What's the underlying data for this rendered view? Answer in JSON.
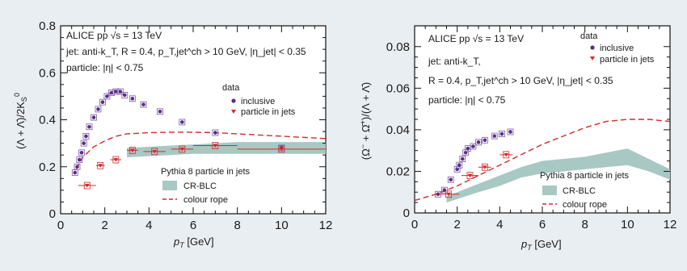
{
  "colors": {
    "background": "#e9eef2",
    "inclusive": "#5a2e84",
    "in_jets": "#d42a2a",
    "cr_blc_band": "#a8c8c4",
    "colour_rope": "#d42a2a"
  },
  "chart_data": [
    {
      "type": "scatter",
      "panel": "left",
      "xlabel": "p_T [GeV]",
      "ylabel": "(Λ + Λ̄)/2K⁰_S",
      "xlim": [
        0,
        12
      ],
      "ylim": [
        0,
        0.8
      ],
      "xticks": [
        "0",
        "2",
        "4",
        "6",
        "8",
        "10",
        "12"
      ],
      "yticks": [
        "0",
        "0.2",
        "0.4",
        "0.6",
        "0.8"
      ],
      "annotations": [
        "ALICE pp √s = 13 TeV",
        "jet: anti-k_T, R = 0.4, p_T,jet^ch > 10 GeV, |η_jet| < 0.35",
        "particle: |η| < 0.75"
      ],
      "legend_data_title": "data",
      "legend_mc_title": "Pythia 8 particle in jets",
      "series": [
        {
          "name": "inclusive",
          "kind": "points",
          "x": [
            0.65,
            0.75,
            0.85,
            0.95,
            1.05,
            1.15,
            1.3,
            1.5,
            1.7,
            1.9,
            2.1,
            2.3,
            2.5,
            2.7,
            2.9,
            3.25,
            3.75,
            4.5,
            5.5,
            7,
            10
          ],
          "y": [
            0.175,
            0.2,
            0.23,
            0.26,
            0.3,
            0.33,
            0.37,
            0.41,
            0.445,
            0.475,
            0.5,
            0.515,
            0.52,
            0.52,
            0.505,
            0.49,
            0.465,
            0.435,
            0.39,
            0.345,
            0.28
          ]
        },
        {
          "name": "particle in jets",
          "kind": "points",
          "x": [
            1.2,
            1.8,
            2.5,
            3.25,
            4.25,
            5.5,
            7,
            10
          ],
          "xerr": [
            0.4,
            0.2,
            0.25,
            0.25,
            0.5,
            0.5,
            1.0,
            2.0
          ],
          "y": [
            0.12,
            0.205,
            0.23,
            0.27,
            0.265,
            0.275,
            0.29,
            0.275
          ]
        },
        {
          "name": "CR-BLC",
          "kind": "band",
          "x": [
            3,
            4,
            5,
            6,
            7,
            8,
            9,
            10,
            11,
            12
          ],
          "ylow": [
            0.24,
            0.245,
            0.25,
            0.255,
            0.255,
            0.255,
            0.255,
            0.255,
            0.255,
            0.255
          ],
          "yhigh": [
            0.28,
            0.285,
            0.29,
            0.295,
            0.3,
            0.305,
            0.305,
            0.305,
            0.305,
            0.305
          ]
        },
        {
          "name": "colour rope",
          "kind": "dashed",
          "x": [
            0.7,
            1,
            1.5,
            2,
            2.5,
            3,
            4,
            5,
            6,
            7,
            8,
            9,
            10,
            11,
            12
          ],
          "y": [
            0.19,
            0.24,
            0.285,
            0.31,
            0.33,
            0.34,
            0.345,
            0.347,
            0.347,
            0.345,
            0.34,
            0.335,
            0.33,
            0.325,
            0.32
          ]
        }
      ]
    },
    {
      "type": "scatter",
      "panel": "right",
      "xlabel": "p_T [GeV]",
      "ylabel": "(Ω⁻ + Ω̄⁺)/(Λ + Λ̄)",
      "xlim": [
        0,
        12
      ],
      "ylim": [
        0,
        0.09
      ],
      "xticks": [
        "0",
        "2",
        "4",
        "6",
        "8",
        "10",
        "12"
      ],
      "yticks": [
        "0",
        "0.02",
        "0.04",
        "0.06",
        "0.08"
      ],
      "annotations": [
        "ALICE pp √s = 13 TeV",
        "jet: anti-k_T,",
        "R = 0.4, p_T,jet^ch > 10 GeV, |η_jet| < 0.35",
        "particle: |η| < 0.75"
      ],
      "legend_data_title": "data",
      "legend_mc_title": "Pythia 8 particle in jets",
      "series": [
        {
          "name": "inclusive",
          "kind": "points",
          "x": [
            1.1,
            1.4,
            1.7,
            2.0,
            2.1,
            2.25,
            2.4,
            2.5,
            2.75,
            3.0,
            3.3,
            3.75,
            4.1,
            4.5
          ],
          "y": [
            0.009,
            0.011,
            0.016,
            0.021,
            0.023,
            0.026,
            0.029,
            0.031,
            0.032,
            0.034,
            0.035,
            0.037,
            0.038,
            0.039
          ]
        },
        {
          "name": "particle in jets",
          "kind": "points",
          "x": [
            1.6,
            2.6,
            3.3,
            4.3
          ],
          "xerr": [
            0.5,
            0.4,
            0.3,
            0.3
          ],
          "y": [
            0.009,
            0.018,
            0.022,
            0.028
          ]
        },
        {
          "name": "CR-BLC",
          "kind": "band",
          "x": [
            1.5,
            3,
            4,
            5,
            6,
            7,
            8,
            9,
            10,
            11,
            12
          ],
          "ylow": [
            0.005,
            0.01,
            0.013,
            0.017,
            0.019,
            0.02,
            0.021,
            0.022,
            0.023,
            0.02,
            0.016
          ],
          "yhigh": [
            0.008,
            0.014,
            0.018,
            0.022,
            0.025,
            0.026,
            0.027,
            0.029,
            0.031,
            0.026,
            0.021
          ]
        },
        {
          "name": "colour rope",
          "kind": "dashed",
          "x": [
            0,
            1,
            2,
            3,
            4,
            5,
            6,
            7,
            8,
            9,
            10,
            11,
            12
          ],
          "y": [
            0.006,
            0.009,
            0.013,
            0.018,
            0.023,
            0.028,
            0.033,
            0.037,
            0.041,
            0.044,
            0.045,
            0.045,
            0.044
          ]
        }
      ]
    }
  ]
}
